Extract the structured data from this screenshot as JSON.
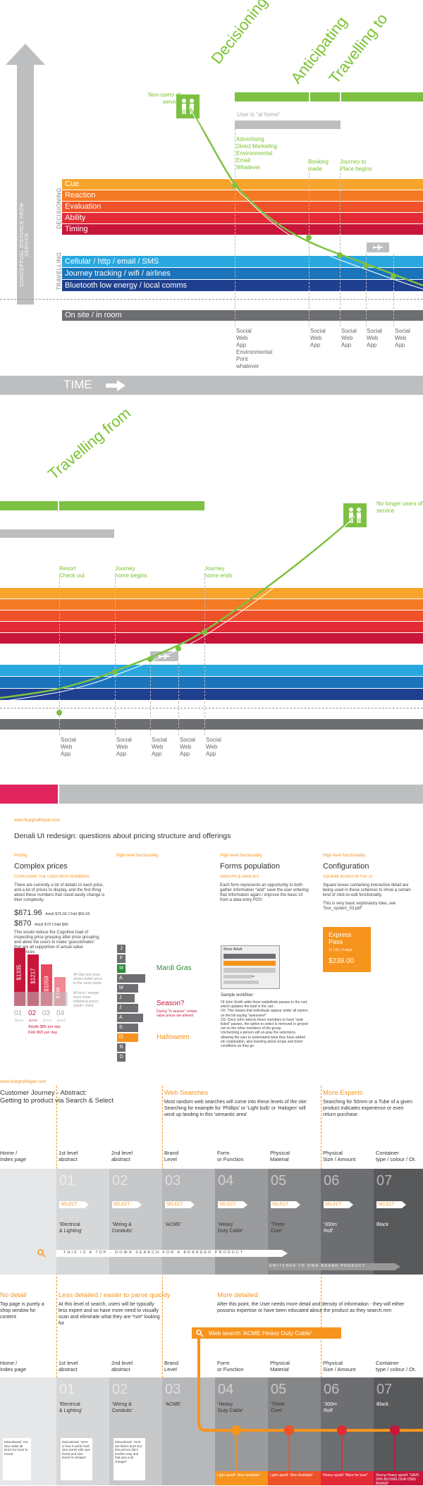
{
  "part1": {
    "phases": [
      "Decisioning",
      "Anticipating",
      "Travelling to"
    ],
    "user_is_at_home": "User is \"at home\"",
    "non_users": "Non-users of service",
    "events": [
      {
        "label": "Advertising\nDirect Marketing\nEnvironmental\nEmail\nWhatever"
      },
      {
        "label": "Booking\nmade"
      },
      {
        "label": "Journey to\nPlace begins"
      }
    ],
    "vertical_axis_label": "CONCEPTUAL DISTANCE FROM SERVICE",
    "group_labels": [
      "DECISIONING",
      "TRAVELLING"
    ],
    "decisioning_bands": [
      {
        "label": "Cue",
        "color": "#f7a42d"
      },
      {
        "label": "Reaction",
        "color": "#f47a23"
      },
      {
        "label": "Evaluation",
        "color": "#ef5128"
      },
      {
        "label": "Ability",
        "color": "#e32b36"
      },
      {
        "label": "Timing",
        "color": "#c7163a"
      }
    ],
    "travelling_bands": [
      {
        "label": "Cellular / http / email / SMS",
        "color": "#29a8e0"
      },
      {
        "label": "Journey tracking / wifi / airlines",
        "color": "#1b73b9"
      },
      {
        "label": "Bluetooth low energy / local comms",
        "color": "#1f3f8f"
      }
    ],
    "onsite": "On site / in room",
    "channels": [
      "Social\nWeb\nApp\nEnvironmental\nPrint\nwhatever",
      "Social\nWeb\nApp",
      "Social\nWeb\nApp",
      "Social\nWeb\nApp",
      "Social\nWeb\nApp"
    ],
    "time_label": "TIME"
  },
  "part2": {
    "phase": "Travelling from",
    "no_longer_users": "No longer users of service",
    "events": [
      "Resort\nCheck out",
      "Journey\nhome begins",
      "Journey\nhome ends"
    ],
    "channels": [
      "Social\nWeb\nApp",
      "Social\nWeb\nApp",
      "Social\nWeb\nApp",
      "Social\nWeb\nApp",
      "Social\nWeb\nApp"
    ]
  },
  "part3": {
    "url": "www.fearghalfeigan.com",
    "title": "Denali UI redesign: questions about pricing structure and offerings",
    "columns": [
      {
        "kicker": "Pricing",
        "heading": "Complex prices",
        "sub": "CONFUSING THE USER WITH NUMBERS",
        "body": "There are currently a lot of details to each price, and a lot of prices to display, and the first thing about these numbers that could easily change is their complexity."
      },
      {
        "kicker": "High level functionality",
        "heading": "",
        "sub": "",
        "body": ""
      },
      {
        "kicker": "High level functionality",
        "heading": "Forms population",
        "sub": "GROUPS & FAMILIES",
        "body": "Each form represents an opportunity to both gather information *and* save the user entering that information again / improve the basic UI from a data entry POV"
      },
      {
        "kicker": "High level functionality",
        "heading": "Configuration",
        "sub": "SQUARE BOXES IN THE UI",
        "body": "Square boxes containing interactive detail are being used in these schemas to show a certain kind of click-to-edit functionality."
      }
    ],
    "price1": "$871.96",
    "price1_detail": "Adult $76.66  Child $66.66",
    "price2": "$870",
    "price2_detail": "Adult $78  Child $66",
    "price_note": "This would reduce the Cognitive load of inspecting price grouping after price grouping, and allow the users to make 'guesstimates' that are all supportive of actual value differences",
    "bar_values": [
      "$1335",
      "$1217",
      "$1059",
      "$749"
    ],
    "days": [
      {
        "num": "01",
        "lbl": "DAYS"
      },
      {
        "num": "02",
        "lbl": "DAYS"
      },
      {
        "num": "03",
        "lbl": "DAYS"
      },
      {
        "num": "04",
        "lbl": "DAYS"
      }
    ],
    "bar_note1": "All Day tour price shows better price to the camp mode",
    "bar_note2": "All tech / orange tours show individual prices (adult / child)",
    "adults_note": "Adults $85 per day",
    "kids_note": "Kids $65 per day",
    "months": [
      "J",
      "F",
      "M",
      "A",
      "M",
      "J",
      "J",
      "A",
      "S",
      "O",
      "N",
      "D"
    ],
    "mardi_gras": "Mardi Gras",
    "season": "Season?",
    "season_note": "During \"in season\" certain value prices are altered",
    "halloween": "Halloween",
    "form_title": "More Adult",
    "form_lines": [
      "Add quote now (Adult)",
      "Add people (Kids)",
      "Let me adjust who goes"
    ],
    "sample_workflow": "Sample workflow:",
    "workflow": "Of John Smith adds three wallet/kids passes to the cart, which updates the total in the cart.\nO2. This means that individuals appear under all names on the list saying \"awesome!\"\nO3. Once John selects these members to have \"wait-listed\" passes, the option to select is removed or greyed out on the other members of the group.\nUnchecking a person will un-gray the selections, allowing the user to understand what they have added etc explanation, also learning about scope and ticket conditions as they go.",
    "config_note": "This is very basic exploratory idea, see \"box_system_03.pdf\"",
    "express_title": "Express Pass",
    "express_opts": "1x | 2x | 3 days",
    "express_price": "$239.00"
  },
  "part4": {
    "url": "www.fearghalfeigan.com",
    "title": "Customer Journey - Abstract:\nGetting to product via Search & Select",
    "web_searches": "Web Searches",
    "web_searches_body": "Most random web searches will come into these levels of the site: Searching for example for 'Phillips' or 'Light bulb' or 'Halogen' will wind up landing in this 'semantic area'",
    "more_experts": "More Experts",
    "more_experts_body": "Searching for 50mm or a Tube of a given product indicates experience or even return purchase",
    "col_headers": [
      "Home /\nIndex page",
      "1st level\nabstract",
      "2nd level\nabstract",
      "Brand\nLevel",
      "Form\nor Function",
      "Physical\nMaterial",
      "Physical\nSize / Amount",
      "Container\ntype / colour / Ot."
    ],
    "numbers": [
      "01",
      "02",
      "03",
      "04",
      "05",
      "06",
      "07"
    ],
    "select": "SELECT",
    "values": [
      "'Electrical\n& Lighting'",
      "'Wiring &\nConduits'",
      "'ACME'",
      "'Heavy\nDuty Cable'",
      "'Three\nCore'",
      "'300m\nRoll'",
      "Black"
    ],
    "arrow1": "THIS IS A TOP - DOWN SEARCH FOR A BRANDED PRODUCT",
    "arrow2": "SWITCHES TO OWN BRAND PRODUCT",
    "no_detail": "No detail",
    "no_detail_body": "Top page is purely a shop window for content",
    "less_detailed": "Less detailed / easier to parse quickly",
    "less_detailed_body": "At this level of search, users will be typically less expert and so have more need to visually scan and eliminate what they are *not* looking for",
    "more_detailed": "More detailed",
    "more_detailed_body": "After this point, the User needs more detail and density of information - they will either possess expertise or have been educated about the product as they search.mm",
    "web_search_box": "Web search 'ACME Heavy Duty Cable'",
    "educational": [
      "Educational: 'Are also make all items for local 'in house'",
      "Educational: 'Here is how it works built also works with own brand and own brand is cheaper'",
      "Educational: 'Here are field it does but this person did it another way and that was a lot cheaper'"
    ],
    "upsells": [
      "Light upsell: 'Also available'",
      "Light upsell: 'Also Available'",
      "Heavy upsell: 'More for less!'",
      "Strong Heavy upsell: 'SAVE 20% BUYING OUR OWN BRAND'"
    ]
  }
}
